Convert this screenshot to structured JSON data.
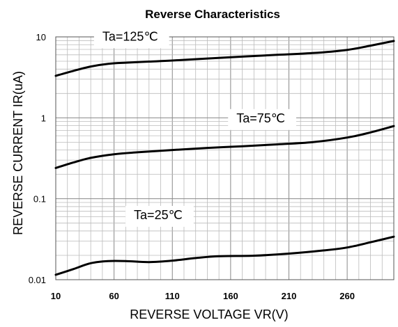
{
  "chart_data": {
    "type": "line",
    "title": "Reverse Characteristics",
    "xlabel": "REVERSE  VOLTAGE    VR(V)",
    "ylabel": "REVERSE  CURRENT  IR(uA)",
    "xlim": [
      10,
      300
    ],
    "ylim": [
      0.01,
      10
    ],
    "yscale": "log",
    "x_ticks": [
      10,
      60,
      110,
      160,
      210,
      260
    ],
    "x_tick_labels": [
      "10",
      "60",
      "110",
      "160",
      "210",
      "260"
    ],
    "y_ticks": [
      0.01,
      0.1,
      1,
      10
    ],
    "y_tick_labels": [
      "0.01",
      "0.1",
      "1",
      "10"
    ],
    "grid": true,
    "series": [
      {
        "name": "Ta=125℃",
        "label_at": [
          50,
          9.0
        ],
        "points": [
          [
            10,
            3.3
          ],
          [
            25,
            3.8
          ],
          [
            40,
            4.3
          ],
          [
            55,
            4.65
          ],
          [
            70,
            4.8
          ],
          [
            90,
            4.95
          ],
          [
            110,
            5.1
          ],
          [
            140,
            5.4
          ],
          [
            170,
            5.7
          ],
          [
            200,
            6.0
          ],
          [
            230,
            6.3
          ],
          [
            260,
            6.9
          ],
          [
            280,
            7.8
          ],
          [
            300,
            8.9
          ]
        ]
      },
      {
        "name": "Ta=75℃",
        "label_at": [
          165,
          0.88
        ],
        "points": [
          [
            10,
            0.24
          ],
          [
            25,
            0.28
          ],
          [
            40,
            0.32
          ],
          [
            60,
            0.355
          ],
          [
            80,
            0.375
          ],
          [
            110,
            0.4
          ],
          [
            140,
            0.425
          ],
          [
            170,
            0.445
          ],
          [
            200,
            0.47
          ],
          [
            230,
            0.5
          ],
          [
            260,
            0.57
          ],
          [
            280,
            0.66
          ],
          [
            300,
            0.79
          ]
        ]
      },
      {
        "name": "Ta=25℃",
        "label_at": [
          77,
          0.056
        ],
        "points": [
          [
            10,
            0.0115
          ],
          [
            25,
            0.0135
          ],
          [
            40,
            0.016
          ],
          [
            55,
            0.017
          ],
          [
            70,
            0.017
          ],
          [
            90,
            0.0165
          ],
          [
            110,
            0.0172
          ],
          [
            130,
            0.0185
          ],
          [
            150,
            0.0195
          ],
          [
            180,
            0.0198
          ],
          [
            210,
            0.021
          ],
          [
            240,
            0.023
          ],
          [
            260,
            0.025
          ],
          [
            280,
            0.029
          ],
          [
            300,
            0.034
          ]
        ]
      }
    ]
  }
}
